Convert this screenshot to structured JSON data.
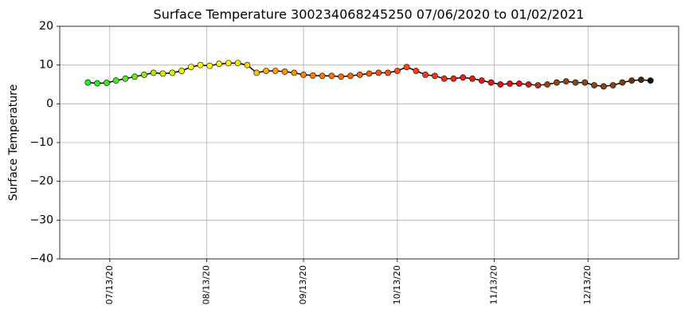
{
  "chart_data": {
    "type": "scatter",
    "title": "Surface Temperature 300234068245250  07/06/2020 to 01/02/2021",
    "y_label": "Surface Temperature",
    "grid": true,
    "line_color": "#000000",
    "xlim": [
      "06/27/20",
      "01/11/21"
    ],
    "xticks": [
      "07/13/20",
      "08/13/20",
      "09/13/20",
      "10/13/20",
      "11/13/20",
      "12/13/20"
    ],
    "ylim": [
      -40,
      20
    ],
    "yticks": [
      {
        "value": -40,
        "label": "−40"
      },
      {
        "value": -30,
        "label": "−30"
      },
      {
        "value": -20,
        "label": "−20"
      },
      {
        "value": -10,
        "label": "−10"
      },
      0,
      10,
      20
    ],
    "x": [
      "07/06/20",
      "07/09/20",
      "07/12/20",
      "07/15/20",
      "07/18/20",
      "07/21/20",
      "07/24/20",
      "07/27/20",
      "07/30/20",
      "08/02/20",
      "08/05/20",
      "08/08/20",
      "08/11/20",
      "08/14/20",
      "08/17/20",
      "08/20/20",
      "08/23/20",
      "08/26/20",
      "08/29/20",
      "09/01/20",
      "09/04/20",
      "09/07/20",
      "09/10/20",
      "09/13/20",
      "09/16/20",
      "09/19/20",
      "09/22/20",
      "09/25/20",
      "09/28/20",
      "10/01/20",
      "10/04/20",
      "10/07/20",
      "10/10/20",
      "10/13/20",
      "10/16/20",
      "10/19/20",
      "10/22/20",
      "10/25/20",
      "10/28/20",
      "10/31/20",
      "11/03/20",
      "11/06/20",
      "11/09/20",
      "11/12/20",
      "11/15/20",
      "11/18/20",
      "11/21/20",
      "11/24/20",
      "11/27/20",
      "11/30/20",
      "12/03/20",
      "12/06/20",
      "12/09/20",
      "12/12/20",
      "12/15/20",
      "12/18/20",
      "12/21/20",
      "12/24/20",
      "12/27/20",
      "12/30/20",
      "01/02/21"
    ],
    "values": [
      5.5,
      5.3,
      5.4,
      6.0,
      6.5,
      7.0,
      7.5,
      8.0,
      7.8,
      8.0,
      8.5,
      9.5,
      10.0,
      9.8,
      10.3,
      10.5,
      10.5,
      10.0,
      8.0,
      8.5,
      8.5,
      8.3,
      8.0,
      7.5,
      7.3,
      7.2,
      7.2,
      7.0,
      7.2,
      7.5,
      7.8,
      8.0,
      8.0,
      8.5,
      9.5,
      8.5,
      7.5,
      7.2,
      6.5,
      6.5,
      6.8,
      6.5,
      6.0,
      5.5,
      5.0,
      5.2,
      5.2,
      5.0,
      4.8,
      5.0,
      5.5,
      5.8,
      5.5,
      5.5,
      4.8,
      4.5,
      4.8,
      5.5,
      6.0,
      6.2,
      6.0
    ],
    "colors": [
      "#22ee22",
      "#22ee22",
      "#33ee22",
      "#44ee22",
      "#55ee22",
      "#66ee11",
      "#88ee11",
      "#aaee00",
      "#ccf000",
      "#ddf200",
      "#eef400",
      "#ffff00",
      "#ffff00",
      "#ffff00",
      "#ffee00",
      "#ffee00",
      "#ffe000",
      "#ffd000",
      "#ffc000",
      "#ffaa00",
      "#ff9f00",
      "#ff9500",
      "#ff9000",
      "#ff8800",
      "#ff8000",
      "#ff7a00",
      "#ff7400",
      "#ff6e00",
      "#ff6800",
      "#ff6200",
      "#ff5c00",
      "#ff5600",
      "#ff5000",
      "#ff4a11",
      "#ff4411",
      "#ff3e11",
      "#ff3811",
      "#ff3211",
      "#f82c11",
      "#f02611",
      "#ee2011",
      "#ee1a11",
      "#ee1411",
      "#ee1111",
      "#e81111",
      "#e21111",
      "#dd1111",
      "#cc2211",
      "#b83311",
      "#a53f13",
      "#9a4513",
      "#8b4513",
      "#8b4513",
      "#8b4513",
      "#8b4513",
      "#8b4513",
      "#8b4513",
      "#7a3c11",
      "#6a340f",
      "#4a240a",
      "#111111"
    ]
  }
}
